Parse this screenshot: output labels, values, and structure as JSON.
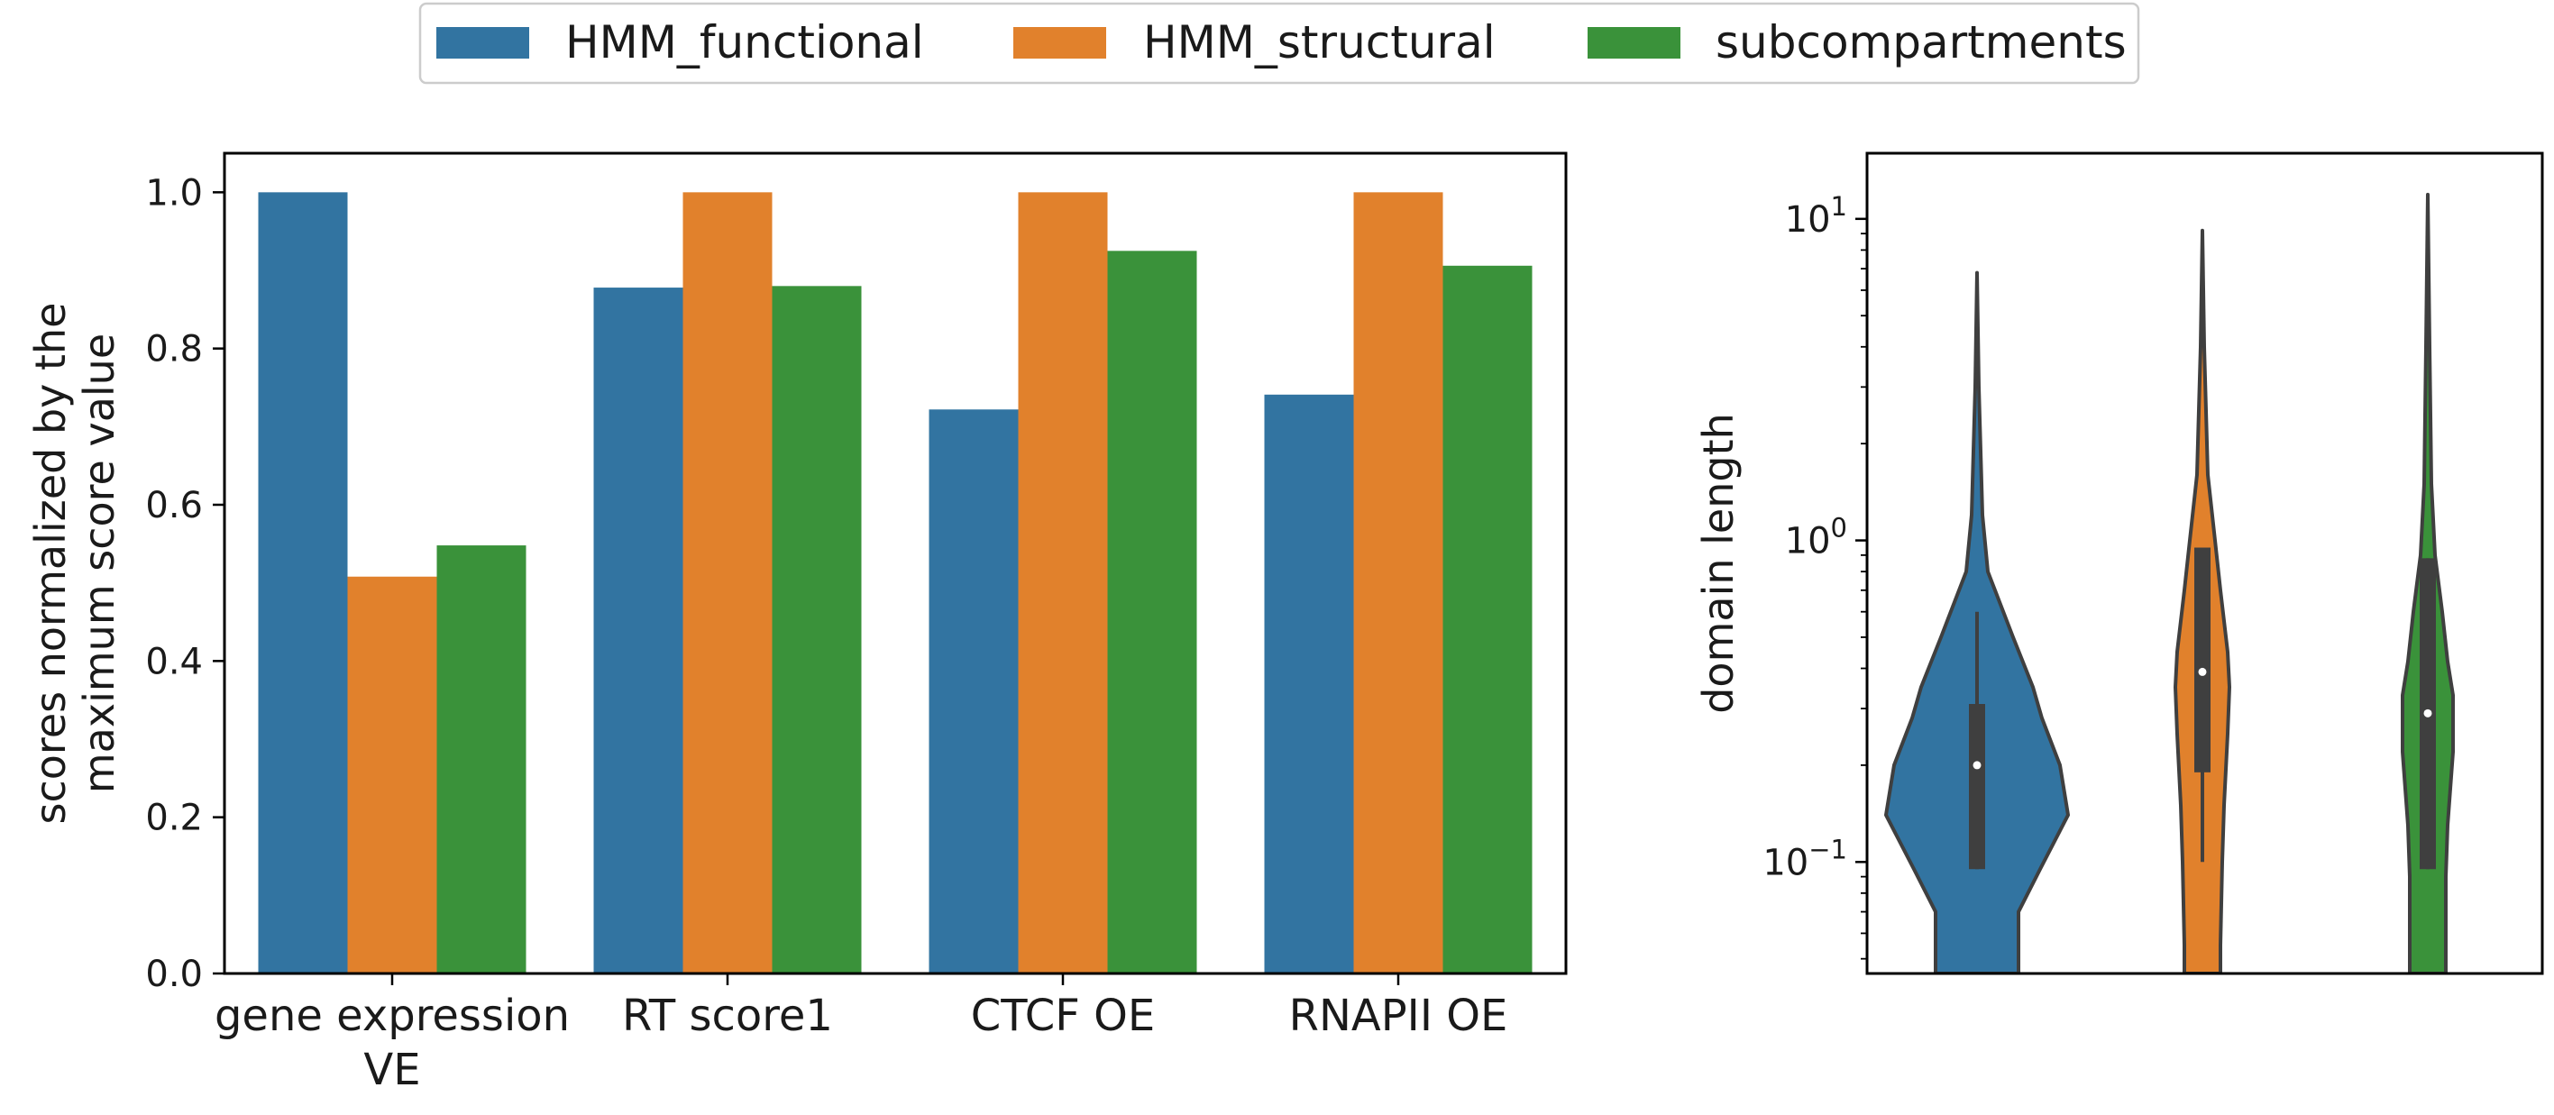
{
  "chart_data": [
    {
      "type": "bar",
      "categories": [
        "gene expression\nVE",
        "RT score1",
        "CTCF OE",
        "RNAPII OE"
      ],
      "series": [
        {
          "name": "HMM_functional",
          "values": [
            1.0,
            0.878,
            0.722,
            0.741
          ]
        },
        {
          "name": "HMM_structural",
          "values": [
            0.508,
            1.0,
            1.0,
            1.0
          ]
        },
        {
          "name": "subcompartments",
          "values": [
            0.548,
            0.88,
            0.925,
            0.906
          ]
        }
      ],
      "colors": [
        "#3274a1",
        "#e1812c",
        "#3a923a"
      ],
      "title": "",
      "xlabel": "",
      "ylabel": "scores normalized by the\nmaximum score value",
      "ylim": [
        0,
        1.05
      ],
      "yticks": [
        "0.0",
        "0.2",
        "0.4",
        "0.6",
        "0.8",
        "1.0"
      ],
      "grid": false,
      "legend": "top-center"
    },
    {
      "type": "violin",
      "y_scale": "log",
      "ylabel": "domain length",
      "ylim": [
        0.045,
        16
      ],
      "yticks": [
        {
          "base": "10",
          "exp": "−1",
          "value": 0.1
        },
        {
          "base": "10",
          "exp": "0",
          "value": 1
        },
        {
          "base": "10",
          "exp": "1",
          "value": 10
        }
      ],
      "series": [
        {
          "name": "HMM_functional",
          "min": 0.045,
          "max": 6.8,
          "q1": 0.095,
          "median": 0.2,
          "q3": 0.31,
          "whisker_hi": 0.6
        },
        {
          "name": "HMM_structural",
          "min": 0.045,
          "max": 9.2,
          "q1": 0.19,
          "median": 0.39,
          "q3": 0.95,
          "whisker_lo": 0.1
        },
        {
          "name": "subcompartments",
          "min": 0.045,
          "max": 11.9,
          "q1": 0.095,
          "median": 0.29,
          "q3": 0.88
        }
      ],
      "colors": [
        "#3274a1",
        "#e1812c",
        "#3a923a"
      ],
      "grid": false
    }
  ]
}
